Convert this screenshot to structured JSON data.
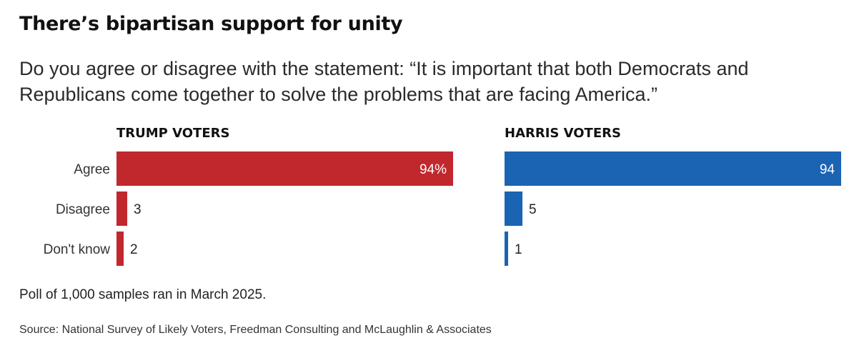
{
  "title": "There’s bipartisan support for unity",
  "subtitle": "Do you agree or disagree with the statement: “It is important that both Democrats and Republicans come together to solve the problems that are facing America.”",
  "note": "Poll of 1,000 samples ran in March 2025.",
  "source": "Source: National Survey of Likely Voters, Freedman Consulting and McLaughlin & Associates",
  "chart_data": {
    "type": "bar",
    "orientation": "horizontal",
    "categories": [
      "Agree",
      "Disagree",
      "Don't know"
    ],
    "xlim": [
      0,
      94
    ],
    "series": [
      {
        "name": "TRUMP VOTERS",
        "color": "#c0282d",
        "values": [
          94,
          3,
          2
        ],
        "value_labels": [
          "94%",
          "3",
          "2"
        ]
      },
      {
        "name": "HARRIS VOTERS",
        "color": "#1a64b3",
        "values": [
          94,
          5,
          1
        ],
        "value_labels": [
          "94",
          "5",
          "1"
        ]
      }
    ]
  }
}
